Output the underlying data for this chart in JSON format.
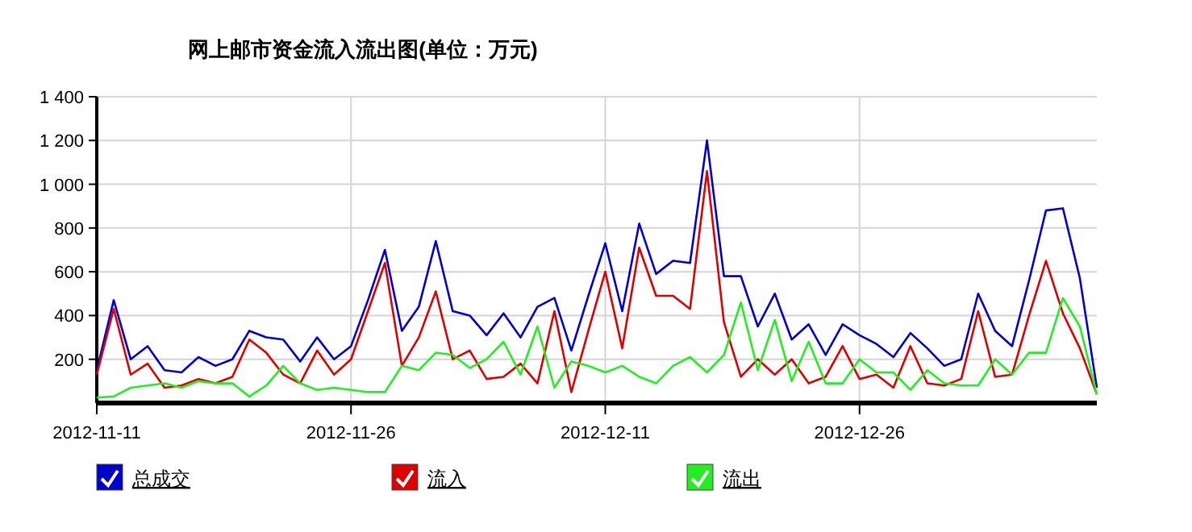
{
  "chart_data": {
    "type": "line",
    "title": "网上邮市资金流入流出图(单位：万元)",
    "x": [
      "2012-11-11",
      "2012-11-12",
      "2012-11-13",
      "2012-11-14",
      "2012-11-15",
      "2012-11-16",
      "2012-11-17",
      "2012-11-18",
      "2012-11-19",
      "2012-11-20",
      "2012-11-21",
      "2012-11-22",
      "2012-11-23",
      "2012-11-24",
      "2012-11-25",
      "2012-11-26",
      "2012-11-27",
      "2012-11-28",
      "2012-11-29",
      "2012-11-30",
      "2012-12-01",
      "2012-12-02",
      "2012-12-03",
      "2012-12-04",
      "2012-12-05",
      "2012-12-06",
      "2012-12-07",
      "2012-12-08",
      "2012-12-09",
      "2012-12-10",
      "2012-12-11",
      "2012-12-12",
      "2012-12-13",
      "2012-12-14",
      "2012-12-15",
      "2012-12-16",
      "2012-12-17",
      "2012-12-18",
      "2012-12-19",
      "2012-12-20",
      "2012-12-21",
      "2012-12-22",
      "2012-12-23",
      "2012-12-24",
      "2012-12-25",
      "2012-12-26",
      "2012-12-27",
      "2012-12-28",
      "2012-12-29",
      "2012-12-30",
      "2012-12-31",
      "2013-01-01",
      "2013-01-02",
      "2013-01-03",
      "2013-01-04",
      "2013-01-05",
      "2013-01-06",
      "2013-01-07",
      "2013-01-08",
      "2013-01-09"
    ],
    "series": [
      {
        "name": "总成交",
        "color": "#0000cc",
        "values": [
          150,
          470,
          200,
          260,
          150,
          140,
          210,
          170,
          200,
          330,
          300,
          290,
          190,
          300,
          200,
          260,
          470,
          700,
          330,
          440,
          740,
          420,
          400,
          310,
          410,
          300,
          440,
          480,
          240,
          490,
          730,
          420,
          820,
          590,
          650,
          640,
          1200,
          580,
          580,
          350,
          500,
          290,
          360,
          220,
          360,
          310,
          270,
          210,
          320,
          250,
          170,
          200,
          500,
          330,
          260,
          560,
          880,
          890,
          570,
          70
        ]
      },
      {
        "name": "流入",
        "color": "#dd0000",
        "values": [
          130,
          430,
          130,
          180,
          70,
          80,
          110,
          90,
          120,
          290,
          230,
          130,
          90,
          240,
          130,
          200,
          420,
          640,
          170,
          300,
          510,
          200,
          240,
          110,
          120,
          180,
          90,
          420,
          50,
          330,
          600,
          250,
          710,
          490,
          490,
          430,
          1060,
          370,
          120,
          200,
          130,
          200,
          90,
          120,
          260,
          110,
          130,
          70,
          260,
          90,
          80,
          110,
          420,
          120,
          130,
          400,
          650,
          410,
          250,
          40
        ]
      },
      {
        "name": "流出",
        "color": "#22ee22",
        "values": [
          25,
          30,
          70,
          80,
          90,
          70,
          100,
          90,
          90,
          30,
          80,
          170,
          90,
          60,
          70,
          60,
          50,
          50,
          170,
          150,
          230,
          220,
          160,
          200,
          280,
          130,
          350,
          70,
          190,
          170,
          140,
          170,
          120,
          90,
          170,
          210,
          140,
          220,
          460,
          150,
          380,
          100,
          280,
          90,
          90,
          200,
          140,
          140,
          60,
          150,
          90,
          80,
          80,
          200,
          130,
          230,
          230,
          480,
          350,
          40
        ]
      }
    ],
    "ylim": [
      0,
      1400
    ],
    "yticks": [
      200,
      400,
      600,
      800,
      {
        "value": 1000,
        "label": "1 000"
      },
      {
        "value": 1200,
        "label": "1 200"
      },
      {
        "value": 1400,
        "label": "1 400"
      }
    ],
    "xlim": [
      "2012-11-11",
      "2013-01-09"
    ],
    "xticks": [
      {
        "value": "2012-11-11",
        "label": "2012-11-11"
      },
      {
        "value": "2012-11-26",
        "label": "2012-11-26"
      },
      {
        "value": "2012-12-11",
        "label": "2012-12-11"
      },
      {
        "value": "2012-12-26",
        "label": "2012-12-26"
      }
    ],
    "grid": true,
    "legend": "bottom",
    "marker": "none",
    "line_style": "solid"
  }
}
